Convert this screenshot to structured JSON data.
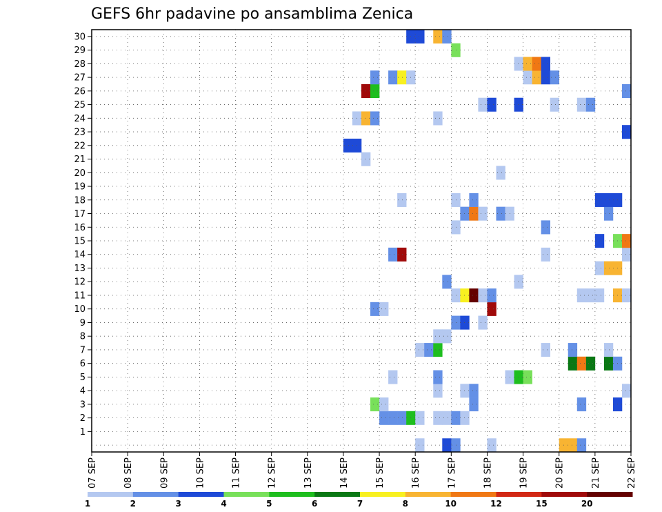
{
  "chart_data": {
    "type": "heatmap",
    "title": "GEFS 6hr padavine po ansamblima Zenica",
    "y_labels": [
      "1",
      "2",
      "3",
      "4",
      "5",
      "6",
      "7",
      "8",
      "9",
      "10",
      "11",
      "12",
      "13",
      "14",
      "15",
      "16",
      "17",
      "18",
      "19",
      "20",
      "21",
      "22",
      "23",
      "24",
      "25",
      "26",
      "27",
      "28",
      "29",
      "30"
    ],
    "x_labels": [
      "07 SEP",
      "08 SEP",
      "09 SEP",
      "10 SEP",
      "11 SEP",
      "12 SEP",
      "13 SEP",
      "14 SEP",
      "15 SEP",
      "16 SEP",
      "17 SEP",
      "18 SEP",
      "19 SEP",
      "20 SEP",
      "21 SEP",
      "22 SEP"
    ],
    "xlim": [
      0,
      60
    ],
    "ylim": [
      -0.5,
      30.5
    ],
    "grid": true,
    "colorbar": {
      "labels": [
        "1",
        "2",
        "3",
        "4",
        "5",
        "6",
        "7",
        "8",
        "10",
        "12",
        "15",
        "20"
      ],
      "colors": [
        "#b4c8f0",
        "#6490e6",
        "#1e4ad7",
        "#78e05a",
        "#1ebe1e",
        "#0a7814",
        "#f8f020",
        "#f8b432",
        "#f07814",
        "#d22814",
        "#a00a0a",
        "#640000"
      ]
    },
    "cells": [
      [
        0,
        36,
        1
      ],
      [
        0,
        39,
        3
      ],
      [
        0,
        40,
        2
      ],
      [
        0,
        44,
        1
      ],
      [
        0,
        52,
        8
      ],
      [
        0,
        53,
        9
      ],
      [
        0,
        54,
        2
      ],
      [
        2,
        32,
        2
      ],
      [
        2,
        33,
        2
      ],
      [
        2,
        34,
        2
      ],
      [
        2,
        35,
        5
      ],
      [
        2,
        36,
        1
      ],
      [
        2,
        38,
        1
      ],
      [
        2,
        39,
        1
      ],
      [
        2,
        40,
        2
      ],
      [
        2,
        41,
        1
      ],
      [
        3,
        31,
        4
      ],
      [
        3,
        32,
        1
      ],
      [
        3,
        42,
        2
      ],
      [
        3,
        54,
        2
      ],
      [
        3,
        58,
        3
      ],
      [
        4,
        38,
        1
      ],
      [
        4,
        41,
        1
      ],
      [
        4,
        42,
        2
      ],
      [
        4,
        59,
        1
      ],
      [
        5,
        33,
        1
      ],
      [
        5,
        38,
        2
      ],
      [
        5,
        46,
        1
      ],
      [
        5,
        47,
        5
      ],
      [
        5,
        48,
        4
      ],
      [
        6,
        53,
        6
      ],
      [
        6,
        54,
        10
      ],
      [
        6,
        55,
        6
      ],
      [
        6,
        57,
        6
      ],
      [
        6,
        58,
        2
      ],
      [
        7,
        36,
        1
      ],
      [
        7,
        37,
        2
      ],
      [
        7,
        38,
        5
      ],
      [
        7,
        50,
        1
      ],
      [
        7,
        53,
        2
      ],
      [
        7,
        57,
        1
      ],
      [
        8,
        38,
        1
      ],
      [
        8,
        39,
        1
      ],
      [
        9,
        40,
        2
      ],
      [
        9,
        41,
        3
      ],
      [
        9,
        43,
        1
      ],
      [
        10,
        31,
        2
      ],
      [
        10,
        32,
        1
      ],
      [
        10,
        44,
        15
      ],
      [
        11,
        40,
        1
      ],
      [
        11,
        41,
        7
      ],
      [
        11,
        42,
        20
      ],
      [
        11,
        43,
        1
      ],
      [
        11,
        44,
        2
      ],
      [
        11,
        54,
        1
      ],
      [
        11,
        55,
        1
      ],
      [
        11,
        56,
        1
      ],
      [
        11,
        58,
        8
      ],
      [
        11,
        59,
        1
      ],
      [
        12,
        39,
        2
      ],
      [
        12,
        47,
        1
      ],
      [
        13,
        56,
        1
      ],
      [
        13,
        57,
        8
      ],
      [
        13,
        58,
        8
      ],
      [
        14,
        33,
        2
      ],
      [
        14,
        34,
        15
      ],
      [
        14,
        50,
        1
      ],
      [
        14,
        59,
        1
      ],
      [
        15,
        56,
        3
      ],
      [
        15,
        58,
        4
      ],
      [
        15,
        59,
        10
      ],
      [
        16,
        40,
        1
      ],
      [
        16,
        50,
        2
      ],
      [
        17,
        41,
        2
      ],
      [
        17,
        42,
        10
      ],
      [
        17,
        43,
        1
      ],
      [
        17,
        45,
        2
      ],
      [
        17,
        46,
        1
      ],
      [
        17,
        57,
        2
      ],
      [
        18,
        34,
        1
      ],
      [
        18,
        40,
        1
      ],
      [
        18,
        42,
        2
      ],
      [
        18,
        56,
        3
      ],
      [
        18,
        57,
        3
      ],
      [
        18,
        58,
        3
      ],
      [
        20,
        45,
        1
      ],
      [
        21,
        30,
        1
      ],
      [
        22,
        28,
        3
      ],
      [
        22,
        29,
        3
      ],
      [
        23,
        59,
        3
      ],
      [
        24,
        29,
        1
      ],
      [
        24,
        30,
        8
      ],
      [
        24,
        31,
        2
      ],
      [
        24,
        38,
        1
      ],
      [
        25,
        43,
        1
      ],
      [
        25,
        44,
        3
      ],
      [
        25,
        47,
        3
      ],
      [
        25,
        51,
        1
      ],
      [
        25,
        54,
        1
      ],
      [
        25,
        55,
        2
      ],
      [
        26,
        30,
        15
      ],
      [
        26,
        31,
        5
      ],
      [
        26,
        59,
        2
      ],
      [
        27,
        31,
        2
      ],
      [
        27,
        33,
        2
      ],
      [
        27,
        34,
        7
      ],
      [
        27,
        35,
        1
      ],
      [
        27,
        48,
        1
      ],
      [
        27,
        49,
        8
      ],
      [
        27,
        50,
        3
      ],
      [
        27,
        51,
        2
      ],
      [
        28,
        47,
        1
      ],
      [
        28,
        48,
        8
      ],
      [
        28,
        49,
        10
      ],
      [
        28,
        50,
        3
      ],
      [
        29,
        40,
        4
      ],
      [
        30,
        35,
        3
      ],
      [
        30,
        36,
        3
      ],
      [
        30,
        38,
        8
      ],
      [
        30,
        39,
        2
      ]
    ]
  }
}
